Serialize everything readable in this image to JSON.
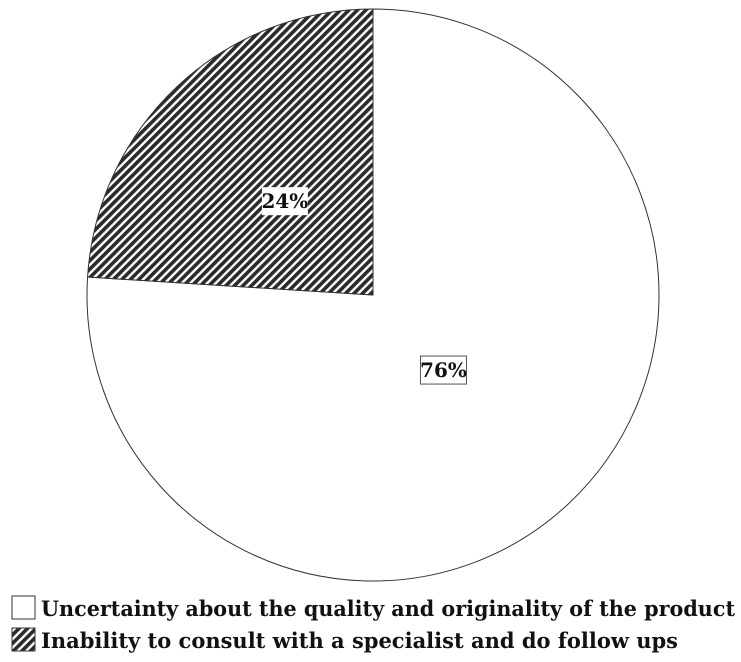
{
  "chart_data": {
    "type": "pie",
    "title": "",
    "slices": [
      {
        "label": "Uncertainty about the quality and originality of the product",
        "value": 76,
        "value_label": "76%",
        "fill": "#ffffff",
        "pattern": "none"
      },
      {
        "label": "Inability to consult with a specialist and do follow ups",
        "value": 24,
        "value_label": "24%",
        "fill": "#2b2b2b",
        "pattern": "diagonal-hatch"
      }
    ],
    "start_angle_deg": 0,
    "direction": "clockwise",
    "legend_position": "bottom-left"
  }
}
